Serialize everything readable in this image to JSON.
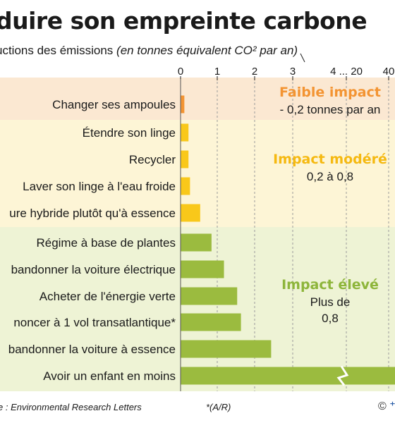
{
  "header": {
    "title": "duire son empreinte carbone",
    "subtitle": "uctions des émissions",
    "subtitle_unit": "(en tonnes équivalent CO² par an)"
  },
  "footer": {
    "source": "e : Environmental Research Letters",
    "note": "*(A/R)",
    "credit_symbol": "©"
  },
  "colors": {
    "low_band": "#fbe8d2",
    "moderate_band": "#fdf5d6",
    "high_band": "#eef3d5",
    "low_bar": "#f39432",
    "moderate_bar": "#f9c81a",
    "high_bar": "#9bbb3f",
    "low_text": "#f39432",
    "moderate_text": "#f5b911",
    "high_text": "#8db53a"
  },
  "chart_data": {
    "type": "bar",
    "orientation": "horizontal",
    "x_ticks": [
      "0",
      "1",
      "2",
      "3",
      "4 ... 20",
      "40"
    ],
    "x_scale": "broken axis (linear 0–4, then 20, 40)",
    "grid": "vertical dashed",
    "bars": [
      {
        "label": "Changer ses ampoules",
        "value": 0.1,
        "group": "low"
      },
      {
        "label": "Étendre son linge",
        "value": 0.21,
        "group": "moderate"
      },
      {
        "label": "Recycler",
        "value": 0.21,
        "group": "moderate"
      },
      {
        "label": "Laver son linge à l'eau froide",
        "value": 0.25,
        "group": "moderate"
      },
      {
        "label": "ure hybride plutôt qu'à essence",
        "value": 0.52,
        "group": "moderate"
      },
      {
        "label": "Régime à base de plantes",
        "value": 0.82,
        "group": "high"
      },
      {
        "label": "bandonner la voiture électrique",
        "value": 1.15,
        "group": "high"
      },
      {
        "label": "Acheter de l'énergie verte",
        "value": 1.5,
        "group": "high"
      },
      {
        "label": "noncer à 1 vol transatlantique*",
        "value": 1.6,
        "group": "high"
      },
      {
        "label": "bandonner la voiture à essence",
        "value": 2.4,
        "group": "high"
      },
      {
        "label": "Avoir un enfant en moins",
        "value": 58.6,
        "group": "high",
        "broken": true
      }
    ],
    "groups": [
      {
        "id": "low",
        "title": "Faible impact",
        "text_lines": [
          "- 0,2 tonnes par an"
        ]
      },
      {
        "id": "moderate",
        "title": "Impact modéré",
        "text_lines": [
          "0,2 à 0,8"
        ]
      },
      {
        "id": "high",
        "title": "Impact élevé",
        "text_lines": [
          "Plus de",
          "0,8"
        ]
      }
    ]
  }
}
